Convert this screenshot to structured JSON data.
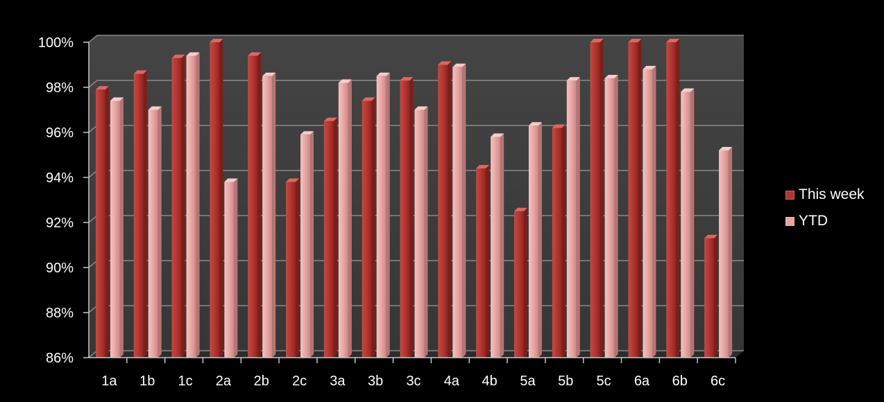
{
  "chart_data": {
    "type": "bar",
    "categories": [
      "1a",
      "1b",
      "1c",
      "2a",
      "2b",
      "2c",
      "3a",
      "3b",
      "3c",
      "4a",
      "4b",
      "5a",
      "5b",
      "5c",
      "6a",
      "6b",
      "6c"
    ],
    "series": [
      {
        "name": "This week",
        "color": "#b3342f",
        "values": [
          97.9,
          98.6,
          99.3,
          100.0,
          99.4,
          93.8,
          96.5,
          97.4,
          98.3,
          99.0,
          94.4,
          92.5,
          96.2,
          100.0,
          100.0,
          100.0,
          91.3
        ]
      },
      {
        "name": "YTD",
        "color": "#e8a3a1",
        "values": [
          97.4,
          97.0,
          99.4,
          93.8,
          98.5,
          95.9,
          98.2,
          98.5,
          97.0,
          98.9,
          95.8,
          96.3,
          98.3,
          98.4,
          98.8,
          97.8,
          95.2
        ]
      }
    ],
    "y_ticks": [
      "86%",
      "88%",
      "90%",
      "92%",
      "94%",
      "96%",
      "98%",
      "100%"
    ],
    "ylim": [
      86,
      100
    ],
    "y_unit": "%",
    "grid": true,
    "legend_position": "right",
    "title": "",
    "xlabel": "",
    "ylabel": ""
  },
  "colors": {
    "background": "#000000",
    "plot_wall": "#3a3a3a",
    "grid": "#8a8a8a",
    "text": "#ffffff"
  }
}
